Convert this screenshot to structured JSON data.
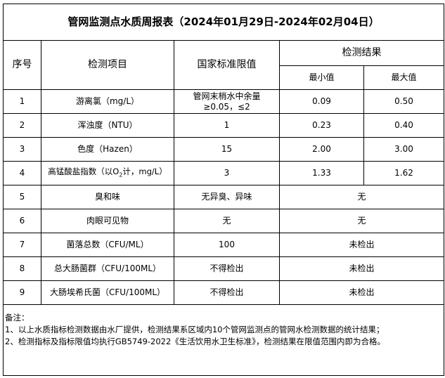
{
  "title": "管网监测点水质周报表（2024年01月29日-2024年02月04日）",
  "headers": {
    "seq": "序号",
    "item": "检测项目",
    "standard": "国家标准限值",
    "result": "检测结果",
    "min": "最小值",
    "max": "最大值"
  },
  "rows": [
    {
      "seq": "1",
      "item": "游离氯（mg/L）",
      "standard": "管网末梢水中余量≥0.05，≤2",
      "min": "0.09",
      "max": "0.50"
    },
    {
      "seq": "2",
      "item": "浑浊度（NTU）",
      "standard": "1",
      "min": "0.23",
      "max": "0.40"
    },
    {
      "seq": "3",
      "item": "色度（Hazen）",
      "standard": "15",
      "min": "2.00",
      "max": "3.00"
    },
    {
      "seq": "4",
      "item_pre": "高锰酸盐指数（以O",
      "item_sub": "2",
      "item_post": "计，mg/L）",
      "standard": "3",
      "min": "1.33",
      "max": "1.62"
    },
    {
      "seq": "5",
      "item": "臭和味",
      "standard": "无异臭、异味",
      "result": "无"
    },
    {
      "seq": "6",
      "item": "肉眼可见物",
      "standard": "无",
      "result": "无"
    },
    {
      "seq": "7",
      "item": "菌落总数（CFU/ML）",
      "standard": "100",
      "result": "未检出"
    },
    {
      "seq": "8",
      "item": "总大肠菌群（CFU/100ML）",
      "standard": "不得检出",
      "result": "未检出"
    },
    {
      "seq": "9",
      "item": "大肠埃希氏菌（CFU/100ML）",
      "standard": "不得检出",
      "result": "未检出"
    }
  ],
  "notes": {
    "label": "备注：",
    "lines": [
      "1、以上水质指标检测数据由水厂提供，检测结果系区域内10个管网监测点的管网水检测数据的统计结果；",
      "2、检测指标及指标限值均执行GB5749-2022《生活饮用水卫生标准》，检测结果在限值范围内即为合格。"
    ]
  }
}
